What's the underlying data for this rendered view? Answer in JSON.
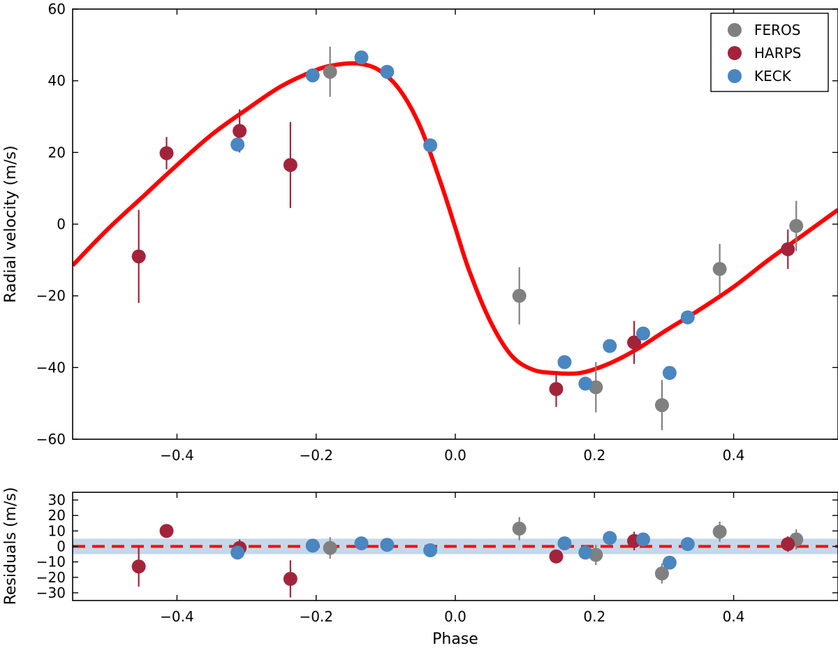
{
  "chart_data": [
    {
      "type": "scatter",
      "panel": "main",
      "xlabel": "",
      "ylabel": "Radial velocity (m/s)",
      "xlim": [
        -0.55,
        0.55
      ],
      "ylim": [
        -60,
        60
      ],
      "xticks": [
        -0.4,
        -0.2,
        0.0,
        0.2,
        0.4
      ],
      "xtick_labels": [
        "−0.4",
        "−0.2",
        "0.0",
        "0.2",
        "0.4"
      ],
      "yticks": [
        60,
        40,
        20,
        0,
        -20,
        -40,
        -60
      ],
      "ytick_labels": [
        "60",
        "40",
        "20",
        "0",
        "−20",
        "−40",
        "−60"
      ],
      "legend_position": "top-right",
      "series": [
        {
          "name": "FEROS",
          "color": "#808080",
          "points": [
            {
              "x": -0.18,
              "y": 42.5,
              "err": 7.0
            },
            {
              "x": 0.092,
              "y": -20.0,
              "err": 8.0
            },
            {
              "x": 0.202,
              "y": -45.5,
              "err": 7.0
            },
            {
              "x": 0.297,
              "y": -50.5,
              "err": 7.0
            },
            {
              "x": 0.38,
              "y": -12.5,
              "err": 7.0
            },
            {
              "x": 0.49,
              "y": -0.5,
              "err": 7.0
            }
          ]
        },
        {
          "name": "HARPS",
          "color": "#A3233B",
          "points": [
            {
              "x": -0.455,
              "y": -9.0,
              "err": 13.0
            },
            {
              "x": -0.415,
              "y": 19.8,
              "err": 4.5
            },
            {
              "x": -0.31,
              "y": 26.0,
              "err": 6.0
            },
            {
              "x": -0.237,
              "y": 16.5,
              "err": 12.0
            },
            {
              "x": 0.145,
              "y": -46.0,
              "err": 5.0
            },
            {
              "x": 0.257,
              "y": -33.0,
              "err": 6.0
            },
            {
              "x": 0.478,
              "y": -7.0,
              "err": 5.5
            }
          ]
        },
        {
          "name": "KECK",
          "color": "#4A86C0",
          "points": [
            {
              "x": -0.313,
              "y": 22.2,
              "err": 1.5
            },
            {
              "x": -0.205,
              "y": 41.5,
              "err": 1.5
            },
            {
              "x": -0.135,
              "y": 46.5,
              "err": 1.5
            },
            {
              "x": -0.098,
              "y": 42.5,
              "err": 1.5
            },
            {
              "x": -0.036,
              "y": 22.0,
              "err": 1.5
            },
            {
              "x": 0.157,
              "y": -38.5,
              "err": 1.5
            },
            {
              "x": 0.187,
              "y": -44.5,
              "err": 1.5
            },
            {
              "x": 0.222,
              "y": -34.0,
              "err": 1.5
            },
            {
              "x": 0.27,
              "y": -30.5,
              "err": 1.5
            },
            {
              "x": 0.308,
              "y": -41.5,
              "err": 1.5
            },
            {
              "x": 0.334,
              "y": -26.0,
              "err": 1.5
            }
          ]
        }
      ],
      "model_curve": {
        "name": "model",
        "color": "#FF0000",
        "x": [
          -0.55,
          -0.5,
          -0.45,
          -0.4,
          -0.35,
          -0.3,
          -0.25,
          -0.2,
          -0.17,
          -0.14,
          -0.11,
          -0.08,
          -0.05,
          -0.02,
          0.0,
          0.02,
          0.05,
          0.08,
          0.11,
          0.14,
          0.18,
          0.22,
          0.26,
          0.3,
          0.35,
          0.4,
          0.45,
          0.5,
          0.55
        ],
        "y": [
          -11.5,
          -1.5,
          7.5,
          16.5,
          25.0,
          32.0,
          38.5,
          43.0,
          44.5,
          44.8,
          43.0,
          37.5,
          27.0,
          11.0,
          -1.0,
          -13.0,
          -27.0,
          -36.5,
          -40.5,
          -41.5,
          -41.5,
          -39.0,
          -35.0,
          -30.0,
          -24.0,
          -17.5,
          -10.0,
          -3.0,
          4.0
        ]
      }
    },
    {
      "type": "scatter",
      "panel": "residuals",
      "xlabel": "Phase",
      "ylabel": "Residuals (m/s)",
      "xlim": [
        -0.55,
        0.55
      ],
      "ylim": [
        -35,
        35
      ],
      "xticks": [
        -0.4,
        -0.2,
        0.0,
        0.2,
        0.4
      ],
      "xtick_labels": [
        "−0.4",
        "−0.2",
        "0.0",
        "0.2",
        "0.4"
      ],
      "yticks": [
        30,
        20,
        10,
        0,
        -10,
        -20,
        -30
      ],
      "ytick_labels": [
        "30",
        "20",
        "10",
        "0",
        "−10",
        "−20",
        "−30"
      ],
      "band": {
        "ymin": -5,
        "ymax": 5,
        "color": "#C5D8EA"
      },
      "zero_line": {
        "y": 0,
        "color": "#FF0000",
        "style": "dashed"
      },
      "series": [
        {
          "name": "FEROS",
          "color": "#808080",
          "points": [
            {
              "x": -0.18,
              "y": -1.0,
              "err": 7.0
            },
            {
              "x": 0.092,
              "y": 11.5,
              "err": 7.5
            },
            {
              "x": 0.202,
              "y": -5.5,
              "err": 6.5
            },
            {
              "x": 0.297,
              "y": -17.5,
              "err": 6.5
            },
            {
              "x": 0.38,
              "y": 9.5,
              "err": 6.5
            },
            {
              "x": 0.49,
              "y": 4.5,
              "err": 6.5
            }
          ]
        },
        {
          "name": "HARPS",
          "color": "#A3233B",
          "points": [
            {
              "x": -0.455,
              "y": -13.0,
              "err": 13.0
            },
            {
              "x": -0.415,
              "y": 10.0,
              "err": 3.0
            },
            {
              "x": -0.31,
              "y": -1.0,
              "err": 5.5
            },
            {
              "x": -0.237,
              "y": -21.0,
              "err": 12.0
            },
            {
              "x": 0.145,
              "y": -6.5,
              "err": 3.5
            },
            {
              "x": 0.257,
              "y": 3.5,
              "err": 6.0
            },
            {
              "x": 0.478,
              "y": 1.5,
              "err": 5.0
            }
          ]
        },
        {
          "name": "KECK",
          "color": "#4A86C0",
          "points": [
            {
              "x": -0.313,
              "y": -4.0,
              "err": 1.5
            },
            {
              "x": -0.205,
              "y": 0.5,
              "err": 1.5
            },
            {
              "x": -0.135,
              "y": 2.0,
              "err": 1.5
            },
            {
              "x": -0.098,
              "y": 1.0,
              "err": 1.5
            },
            {
              "x": -0.036,
              "y": -2.5,
              "err": 1.5
            },
            {
              "x": 0.157,
              "y": 2.0,
              "err": 1.5
            },
            {
              "x": 0.187,
              "y": -4.0,
              "err": 1.5
            },
            {
              "x": 0.222,
              "y": 5.5,
              "err": 1.5
            },
            {
              "x": 0.27,
              "y": 4.5,
              "err": 1.5
            },
            {
              "x": 0.308,
              "y": -10.5,
              "err": 1.5
            },
            {
              "x": 0.334,
              "y": 1.5,
              "err": 1.5
            }
          ]
        }
      ]
    }
  ]
}
